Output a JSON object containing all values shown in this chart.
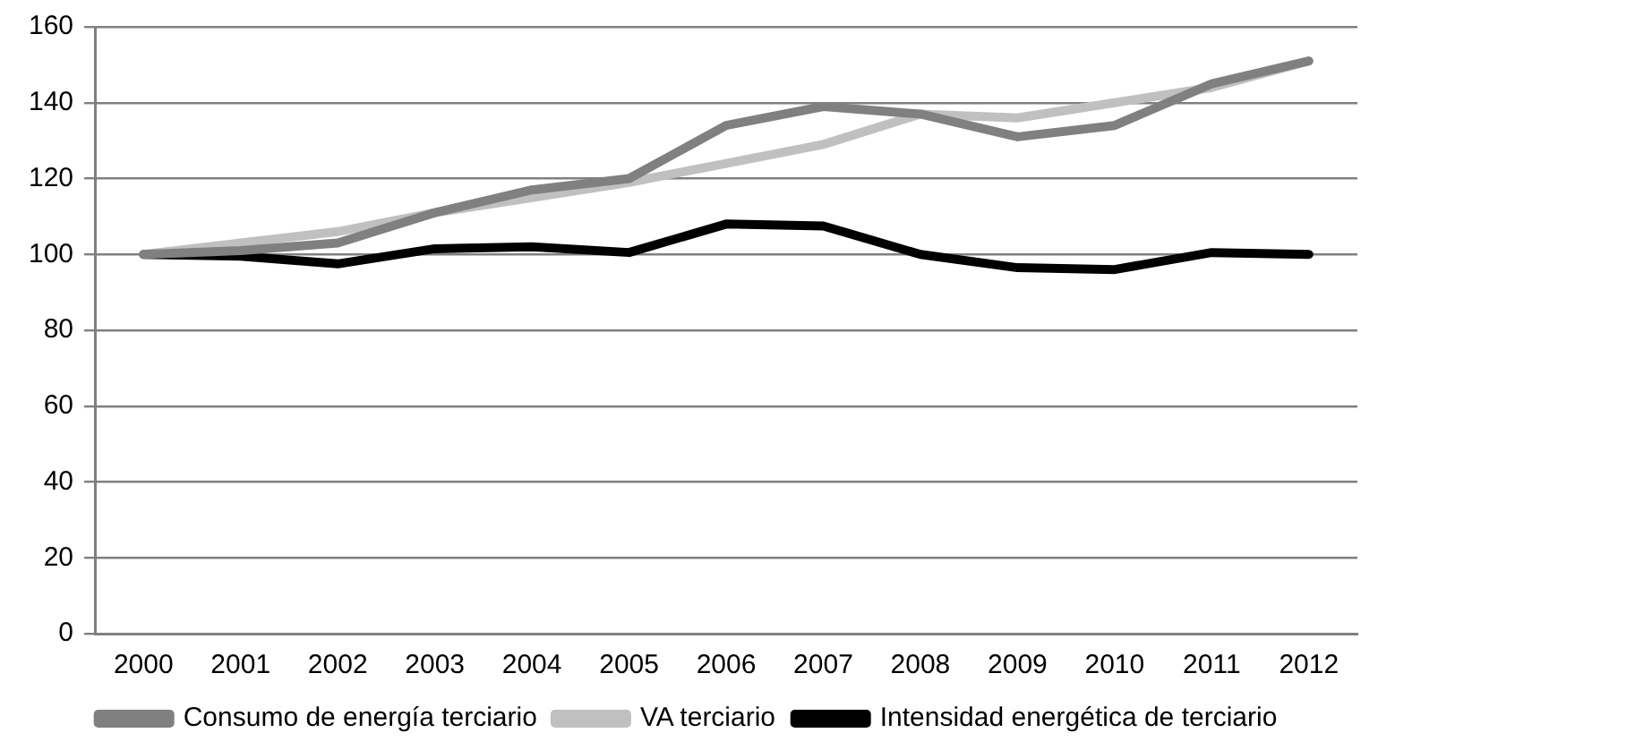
{
  "chart_data": {
    "type": "line",
    "categories": [
      "2000",
      "2001",
      "2002",
      "2003",
      "2004",
      "2005",
      "2006",
      "2007",
      "2008",
      "2009",
      "2010",
      "2011",
      "2012"
    ],
    "series": [
      {
        "name": "Consumo de energía terciario",
        "color": "#808080",
        "values": [
          100,
          101,
          103,
          111,
          117,
          120,
          134,
          139,
          137,
          131,
          134,
          145,
          151
        ]
      },
      {
        "name": "VA terciario",
        "color": "#c0c0c0",
        "values": [
          100,
          103,
          106,
          111,
          115,
          119,
          124,
          129,
          137,
          136,
          140,
          144,
          151
        ]
      },
      {
        "name": "Intensidad energética de terciario",
        "color": "#000000",
        "values": [
          100,
          99.5,
          97.5,
          101.5,
          102,
          100.5,
          108,
          107.5,
          100,
          96.5,
          96,
          100.5,
          100
        ]
      }
    ],
    "ylim": [
      0,
      160
    ],
    "yticks": [
      0,
      20,
      40,
      60,
      80,
      100,
      120,
      140,
      160
    ],
    "grid": "y",
    "legend": "bottom",
    "marker": "none",
    "line_style": "solid"
  }
}
